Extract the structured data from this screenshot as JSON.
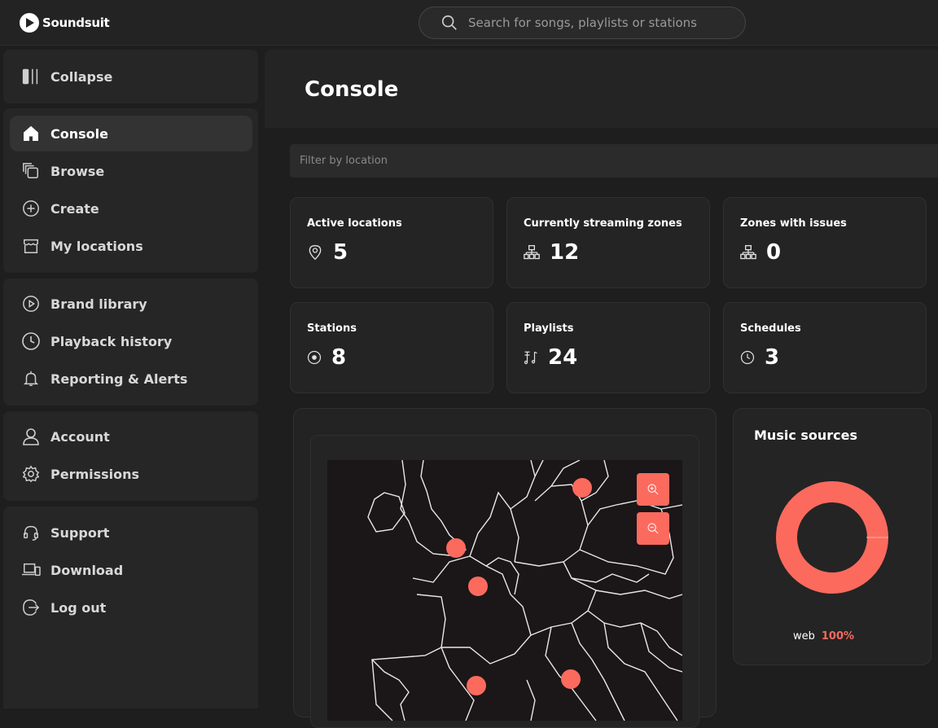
{
  "app": {
    "name": "Soundsuit"
  },
  "search": {
    "placeholder": "Search for songs, playlists or stations"
  },
  "sidebar": {
    "collapse_label": "Collapse",
    "group1": [
      {
        "label": "Console",
        "icon": "home-icon",
        "active": true
      },
      {
        "label": "Browse",
        "icon": "browse-icon"
      },
      {
        "label": "Create",
        "icon": "plus-circle-icon"
      },
      {
        "label": "My locations",
        "icon": "store-icon"
      }
    ],
    "group2": [
      {
        "label": "Brand library",
        "icon": "play-circle-icon"
      },
      {
        "label": "Playback history",
        "icon": "clock-icon"
      },
      {
        "label": "Reporting & Alerts",
        "icon": "bell-icon"
      }
    ],
    "group3": [
      {
        "label": "Account",
        "icon": "user-icon"
      },
      {
        "label": "Permissions",
        "icon": "gear-icon"
      }
    ],
    "group4": [
      {
        "label": "Support",
        "icon": "headset-icon"
      },
      {
        "label": "Download",
        "icon": "devices-icon"
      },
      {
        "label": "Log out",
        "icon": "logout-icon"
      }
    ]
  },
  "main": {
    "title": "Console",
    "filter_placeholder": "Filter by location",
    "stats": [
      {
        "label": "Active locations",
        "value": "5",
        "icon": "location-pin-icon"
      },
      {
        "label": "Currently streaming zones",
        "value": "12",
        "icon": "network-icon"
      },
      {
        "label": "Zones with issues",
        "value": "0",
        "icon": "network-icon"
      },
      {
        "label": "Stations",
        "value": "8",
        "icon": "disc-icon"
      },
      {
        "label": "Playlists",
        "value": "24",
        "icon": "playlist-icon"
      },
      {
        "label": "Schedules",
        "value": "3",
        "icon": "clock-icon"
      }
    ],
    "map": {
      "marker_color": "#fc6a5e"
    },
    "music_sources": {
      "title": "Music sources",
      "items": [
        {
          "name": "web",
          "percent": "100%",
          "fraction": 1.0
        }
      ],
      "color": "#fc6a5e"
    }
  }
}
